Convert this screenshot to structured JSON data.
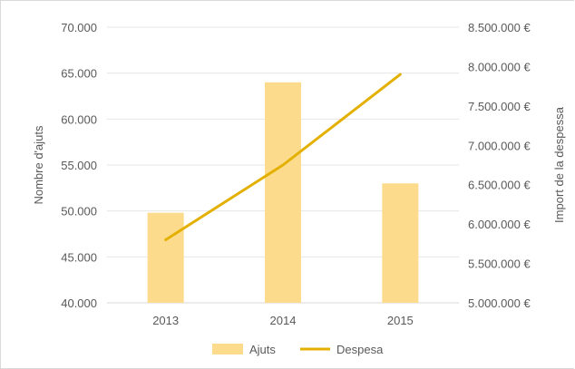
{
  "chart_data": {
    "type": "bar",
    "categories": [
      "2013",
      "2014",
      "2015"
    ],
    "series": [
      {
        "name": "Ajuts",
        "type": "bar",
        "axis": "left",
        "values": [
          49800,
          64000,
          53000
        ],
        "color": "#fcdc8c"
      },
      {
        "name": "Despesa",
        "type": "line",
        "axis": "right",
        "values": [
          5800000,
          6750000,
          7900000
        ],
        "color": "#e4b000"
      }
    ],
    "y_left": {
      "label": "Nombre d'ajuts",
      "ylim": [
        40000,
        70000
      ],
      "ticks": [
        "40.000",
        "45.000",
        "50.000",
        "55.000",
        "60.000",
        "65.000",
        "70.000"
      ]
    },
    "y_right": {
      "label": "Import de la despessa",
      "ylim": [
        5000000,
        8500000
      ],
      "ticks": [
        "5.000.000 €",
        "5.500.000 €",
        "6.000.000 €",
        "6.500.000 €",
        "7.000.000 €",
        "7.500.000 €",
        "8.000.000 €",
        "8.500.000 €"
      ]
    },
    "grid": true,
    "legend": "bottom"
  }
}
